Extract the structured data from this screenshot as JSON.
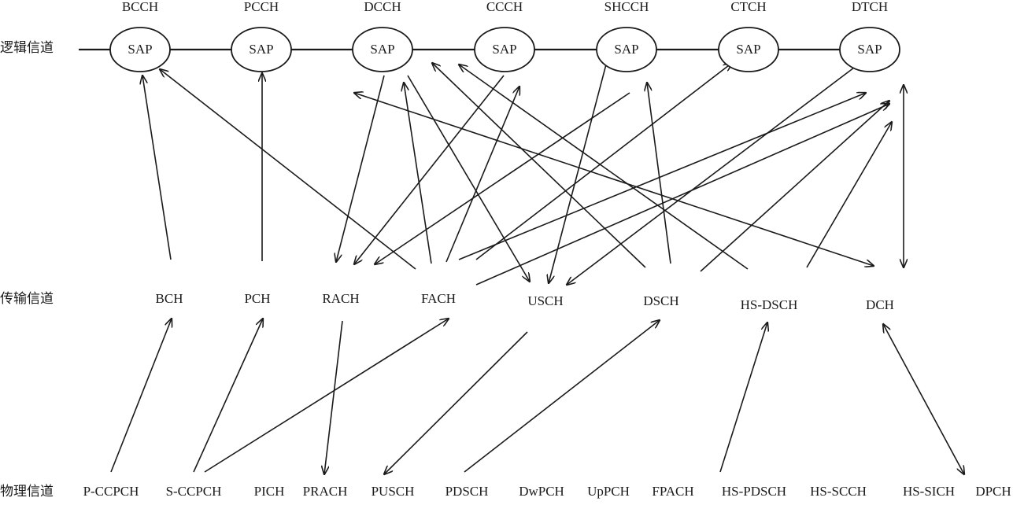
{
  "row_labels": {
    "logical": "逻辑信道",
    "transport": "传输信道",
    "physical": "物理信道"
  },
  "sap_label": "SAP",
  "logical_channels": [
    "BCCH",
    "PCCH",
    "DCCH",
    "CCCH",
    "SHCCH",
    "CTCH",
    "DTCH"
  ],
  "transport_channels": [
    "BCH",
    "PCH",
    "RACH",
    "FACH",
    "USCH",
    "DSCH",
    "HS-DSCH",
    "DCH"
  ],
  "physical_channels": [
    "P-CCPCH",
    "S-CCPCH",
    "PICH",
    "PRACH",
    "PUSCH",
    "PDSCH",
    "DwPCH",
    "UpPCH",
    "FPACH",
    "HS-PDSCH",
    "HS-SCCH",
    "HS-SICH",
    "DPCH"
  ]
}
